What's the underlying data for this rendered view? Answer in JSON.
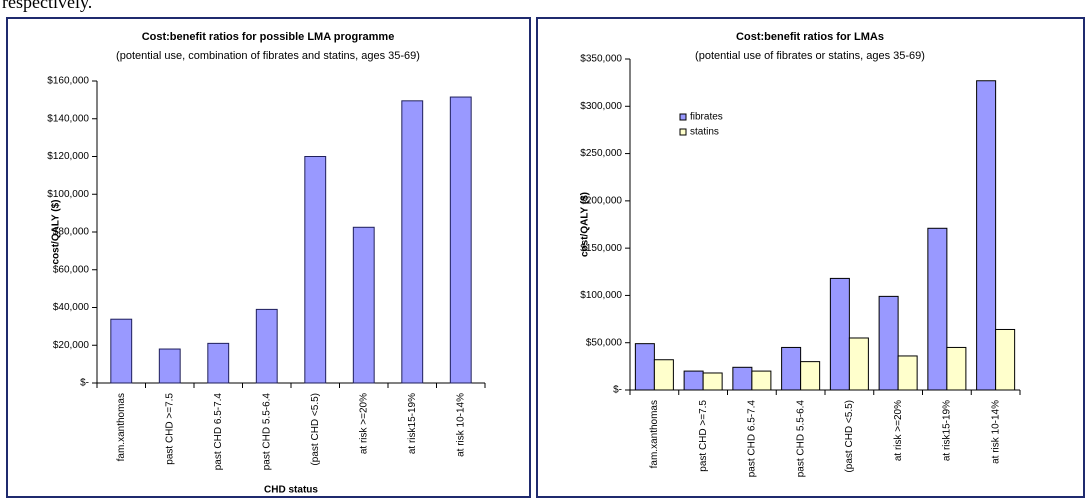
{
  "page_text": "respectively.",
  "chart_data": [
    {
      "type": "bar",
      "title": "Cost:benefit ratios for possible LMA programme",
      "subtitle": "(potential use, combination of fibrates and statins, ages 35-69)",
      "y_label": "cost/QALY ($)",
      "x_label": "CHD status",
      "categories": [
        "fam.xanthomas",
        "past CHD >=7.5",
        "past CHD 6.5-7.4",
        "past CHD 5.5-6.4",
        "(past CHD <5.5)",
        "at risk >=20%",
        "at risk15-19%",
        "at risk 10-14%"
      ],
      "values": [
        33800,
        18000,
        21000,
        39000,
        120000,
        82500,
        149500,
        151500
      ],
      "color": "#9999ff",
      "ylim": [
        0,
        160000
      ],
      "yticks": [
        {
          "value": 0,
          "label": "$-"
        },
        {
          "value": 20000,
          "label": "$20,000"
        },
        {
          "value": 40000,
          "label": "$40,000"
        },
        {
          "value": 60000,
          "label": "$60,000"
        },
        {
          "value": 80000,
          "label": "$80,000"
        },
        {
          "value": 100000,
          "label": "$100,000"
        },
        {
          "value": 120000,
          "label": "$120,000"
        },
        {
          "value": 140000,
          "label": "$140,000"
        },
        {
          "value": 160000,
          "label": "$160,000"
        }
      ],
      "grid": false
    },
    {
      "type": "grouped_bar",
      "title": "Cost:benefit ratios for LMAs",
      "subtitle": "(potential use of fibrates or statins, ages 35-69)",
      "y_label": "cost/QALY ($)",
      "categories": [
        "fam.xanthomas",
        "past CHD >=7.5",
        "past CHD 6.5-7.4",
        "past CHD 5.5-6.4",
        "(past CHD <5.5)",
        "at risk >=20%",
        "at risk15-19%",
        "at risk 10-14%"
      ],
      "series": [
        {
          "name": "fibrates",
          "color": "#9999ff",
          "values": [
            49000,
            20000,
            24000,
            45000,
            118000,
            99000,
            171000,
            327000
          ]
        },
        {
          "name": "statins",
          "color": "#ffffcc",
          "values": [
            32000,
            18000,
            20000,
            30000,
            55000,
            36000,
            45000,
            64000
          ]
        }
      ],
      "ylim": [
        0,
        350000
      ],
      "yticks": [
        {
          "value": 0,
          "label": "$-"
        },
        {
          "value": 50000,
          "label": "$50,000"
        },
        {
          "value": 100000,
          "label": "$100,000"
        },
        {
          "value": 150000,
          "label": "$150,000"
        },
        {
          "value": 200000,
          "label": "$200,000"
        },
        {
          "value": 250000,
          "label": "$250,000"
        },
        {
          "value": 300000,
          "label": "$300,000"
        },
        {
          "value": 350000,
          "label": "$350,000"
        }
      ],
      "legend": "upper left",
      "grid": false
    }
  ]
}
